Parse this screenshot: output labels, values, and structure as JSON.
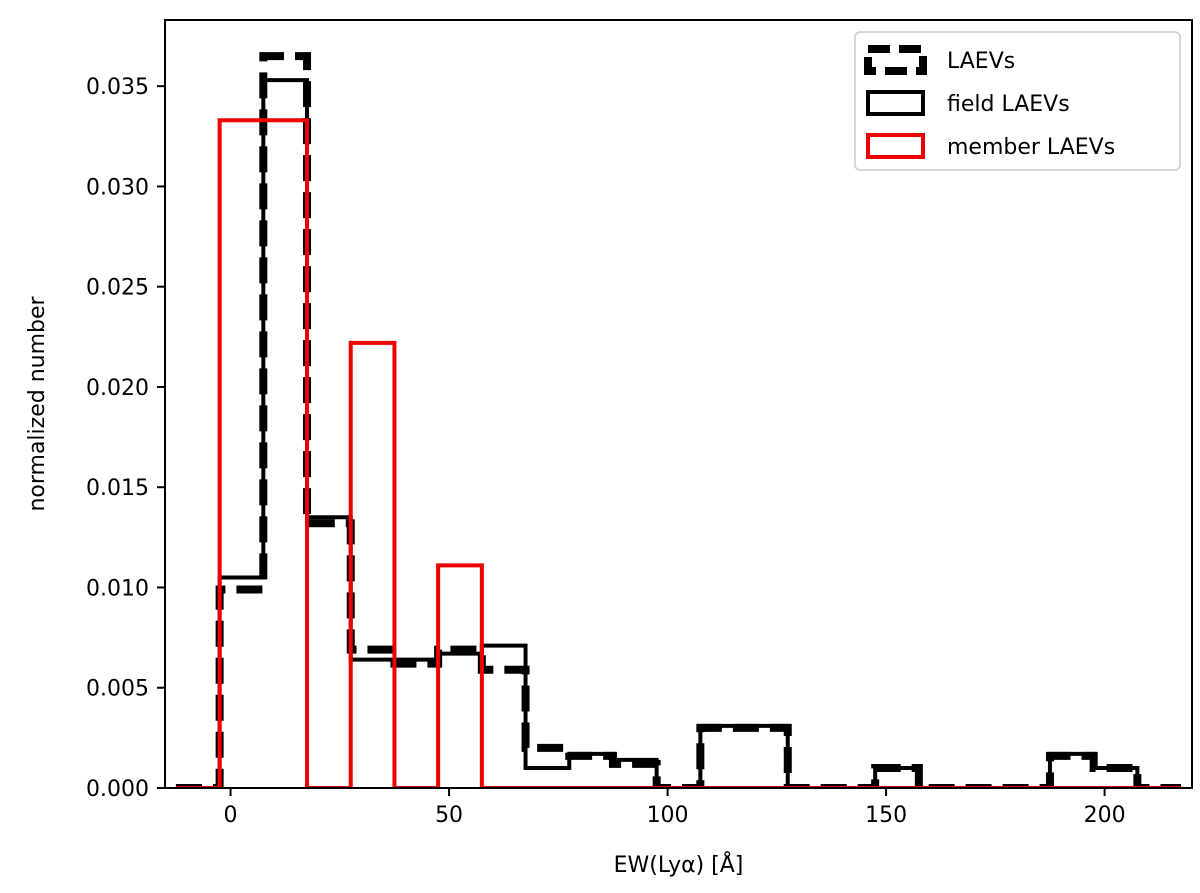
{
  "chart_data": {
    "type": "histogram-step",
    "title": "",
    "xlabel": "EW(Lyα) [Å]",
    "ylabel": "normalized number",
    "xlim": [
      -15,
      220
    ],
    "ylim": [
      0,
      0.0383
    ],
    "xticks": [
      0,
      50,
      100,
      150,
      200
    ],
    "xtick_labels": [
      "0",
      "50",
      "100",
      "150",
      "200"
    ],
    "yticks": [
      0,
      0.005,
      0.01,
      0.015,
      0.02,
      0.025,
      0.03,
      0.035
    ],
    "ytick_labels": [
      "0.000",
      "0.005",
      "0.010",
      "0.015",
      "0.020",
      "0.025",
      "0.030",
      "0.035"
    ],
    "grid": false,
    "legend_position": "top-right",
    "bin_edges": [
      -12.5,
      -2.5,
      7.5,
      17.5,
      27.5,
      37.5,
      47.5,
      57.5,
      67.5,
      77.5,
      87.5,
      97.5,
      107.5,
      117.5,
      127.5,
      137.5,
      147.5,
      157.5,
      167.5,
      177.5,
      187.5,
      197.5,
      207.5,
      217.5
    ],
    "series": [
      {
        "name": "LAEVs",
        "style": "dashed",
        "color": "#000000",
        "values": [
          0,
          0.0099,
          0.0365,
          0.0132,
          0.0069,
          0.0062,
          0.0069,
          0.0059,
          0.002,
          0.0016,
          0.0012,
          0,
          0.003,
          0.003,
          0,
          0,
          0.001,
          0,
          0,
          0,
          0.0016,
          0.001,
          0,
          0
        ]
      },
      {
        "name": "field LAEVs",
        "style": "solid",
        "color": "#000000",
        "values": [
          0,
          0.0105,
          0.0353,
          0.0135,
          0.0064,
          0.0064,
          0.0067,
          0.0071,
          0.001,
          0.0017,
          0.0014,
          0,
          0.0031,
          0.0031,
          0,
          0,
          0.001,
          0,
          0,
          0,
          0.0017,
          0.001,
          0,
          0
        ]
      },
      {
        "name": "member LAEVs",
        "style": "solid",
        "color": "#ee0000",
        "values": [
          0,
          0.0333,
          0.0333,
          0,
          0.0222,
          0,
          0.0111,
          0,
          0,
          0,
          0,
          0,
          0,
          0,
          0,
          0,
          0,
          0,
          0,
          0,
          0,
          0,
          0,
          0
        ]
      }
    ]
  }
}
